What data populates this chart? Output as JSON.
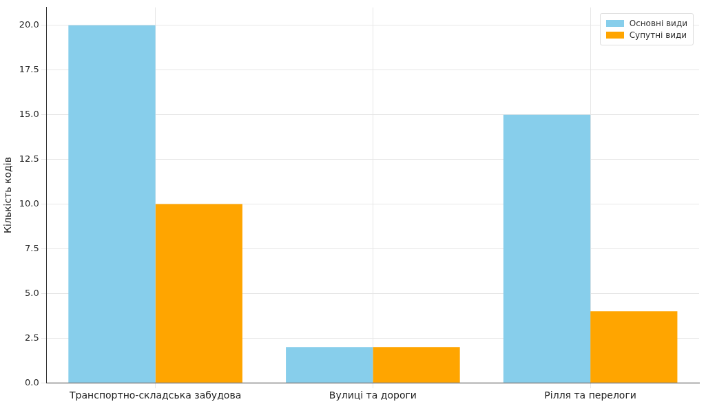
{
  "chart_data": {
    "type": "bar",
    "ylabel": "Кількість кодів",
    "categories": [
      "Транспортно-складська забудова",
      "Вулиці та дороги",
      "Рілля та перелоги"
    ],
    "series": [
      {
        "name": "Основні види",
        "color": "#87ceeb",
        "values": [
          20,
          2,
          15
        ]
      },
      {
        "name": "Супутні види",
        "color": "#ffa500",
        "values": [
          10,
          2,
          4
        ]
      }
    ],
    "ylim": [
      0,
      21
    ],
    "yticks": [
      {
        "value": 0,
        "label": "0.0"
      },
      {
        "value": 2.5,
        "label": "2.5"
      },
      {
        "value": 5,
        "label": "5.0"
      },
      {
        "value": 7.5,
        "label": "7.5"
      },
      {
        "value": 10,
        "label": "10.0"
      },
      {
        "value": 12.5,
        "label": "12.5"
      },
      {
        "value": 15,
        "label": "15.0"
      },
      {
        "value": 17.5,
        "label": "17.5"
      },
      {
        "value": 20,
        "label": "20.0"
      }
    ],
    "grid": true,
    "legend": "top right"
  }
}
